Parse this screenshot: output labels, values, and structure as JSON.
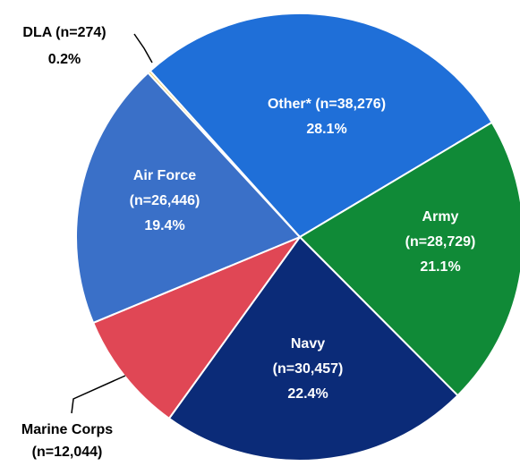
{
  "chart_data": {
    "type": "pie",
    "categories": [
      "Other*",
      "Army",
      "Navy",
      "Marine Corps",
      "Air Force",
      "DLA"
    ],
    "count_labels": [
      "(n=38,276)",
      "(n=28,729)",
      "(n=30,457)",
      "(n=12,044)",
      "(n=26,446)",
      "(n=274)"
    ],
    "values": [
      28.1,
      21.1,
      22.4,
      8.8,
      19.4,
      0.2
    ],
    "value_labels": [
      "28.1%",
      "21.1%",
      "22.4%",
      null,
      "19.4%",
      "0.2%"
    ],
    "colors": [
      "#1f6fd8",
      "#108a37",
      "#0b2b78",
      "#e04755",
      "#3a70c8",
      "#f3d36b"
    ],
    "start_angle": -42
  }
}
